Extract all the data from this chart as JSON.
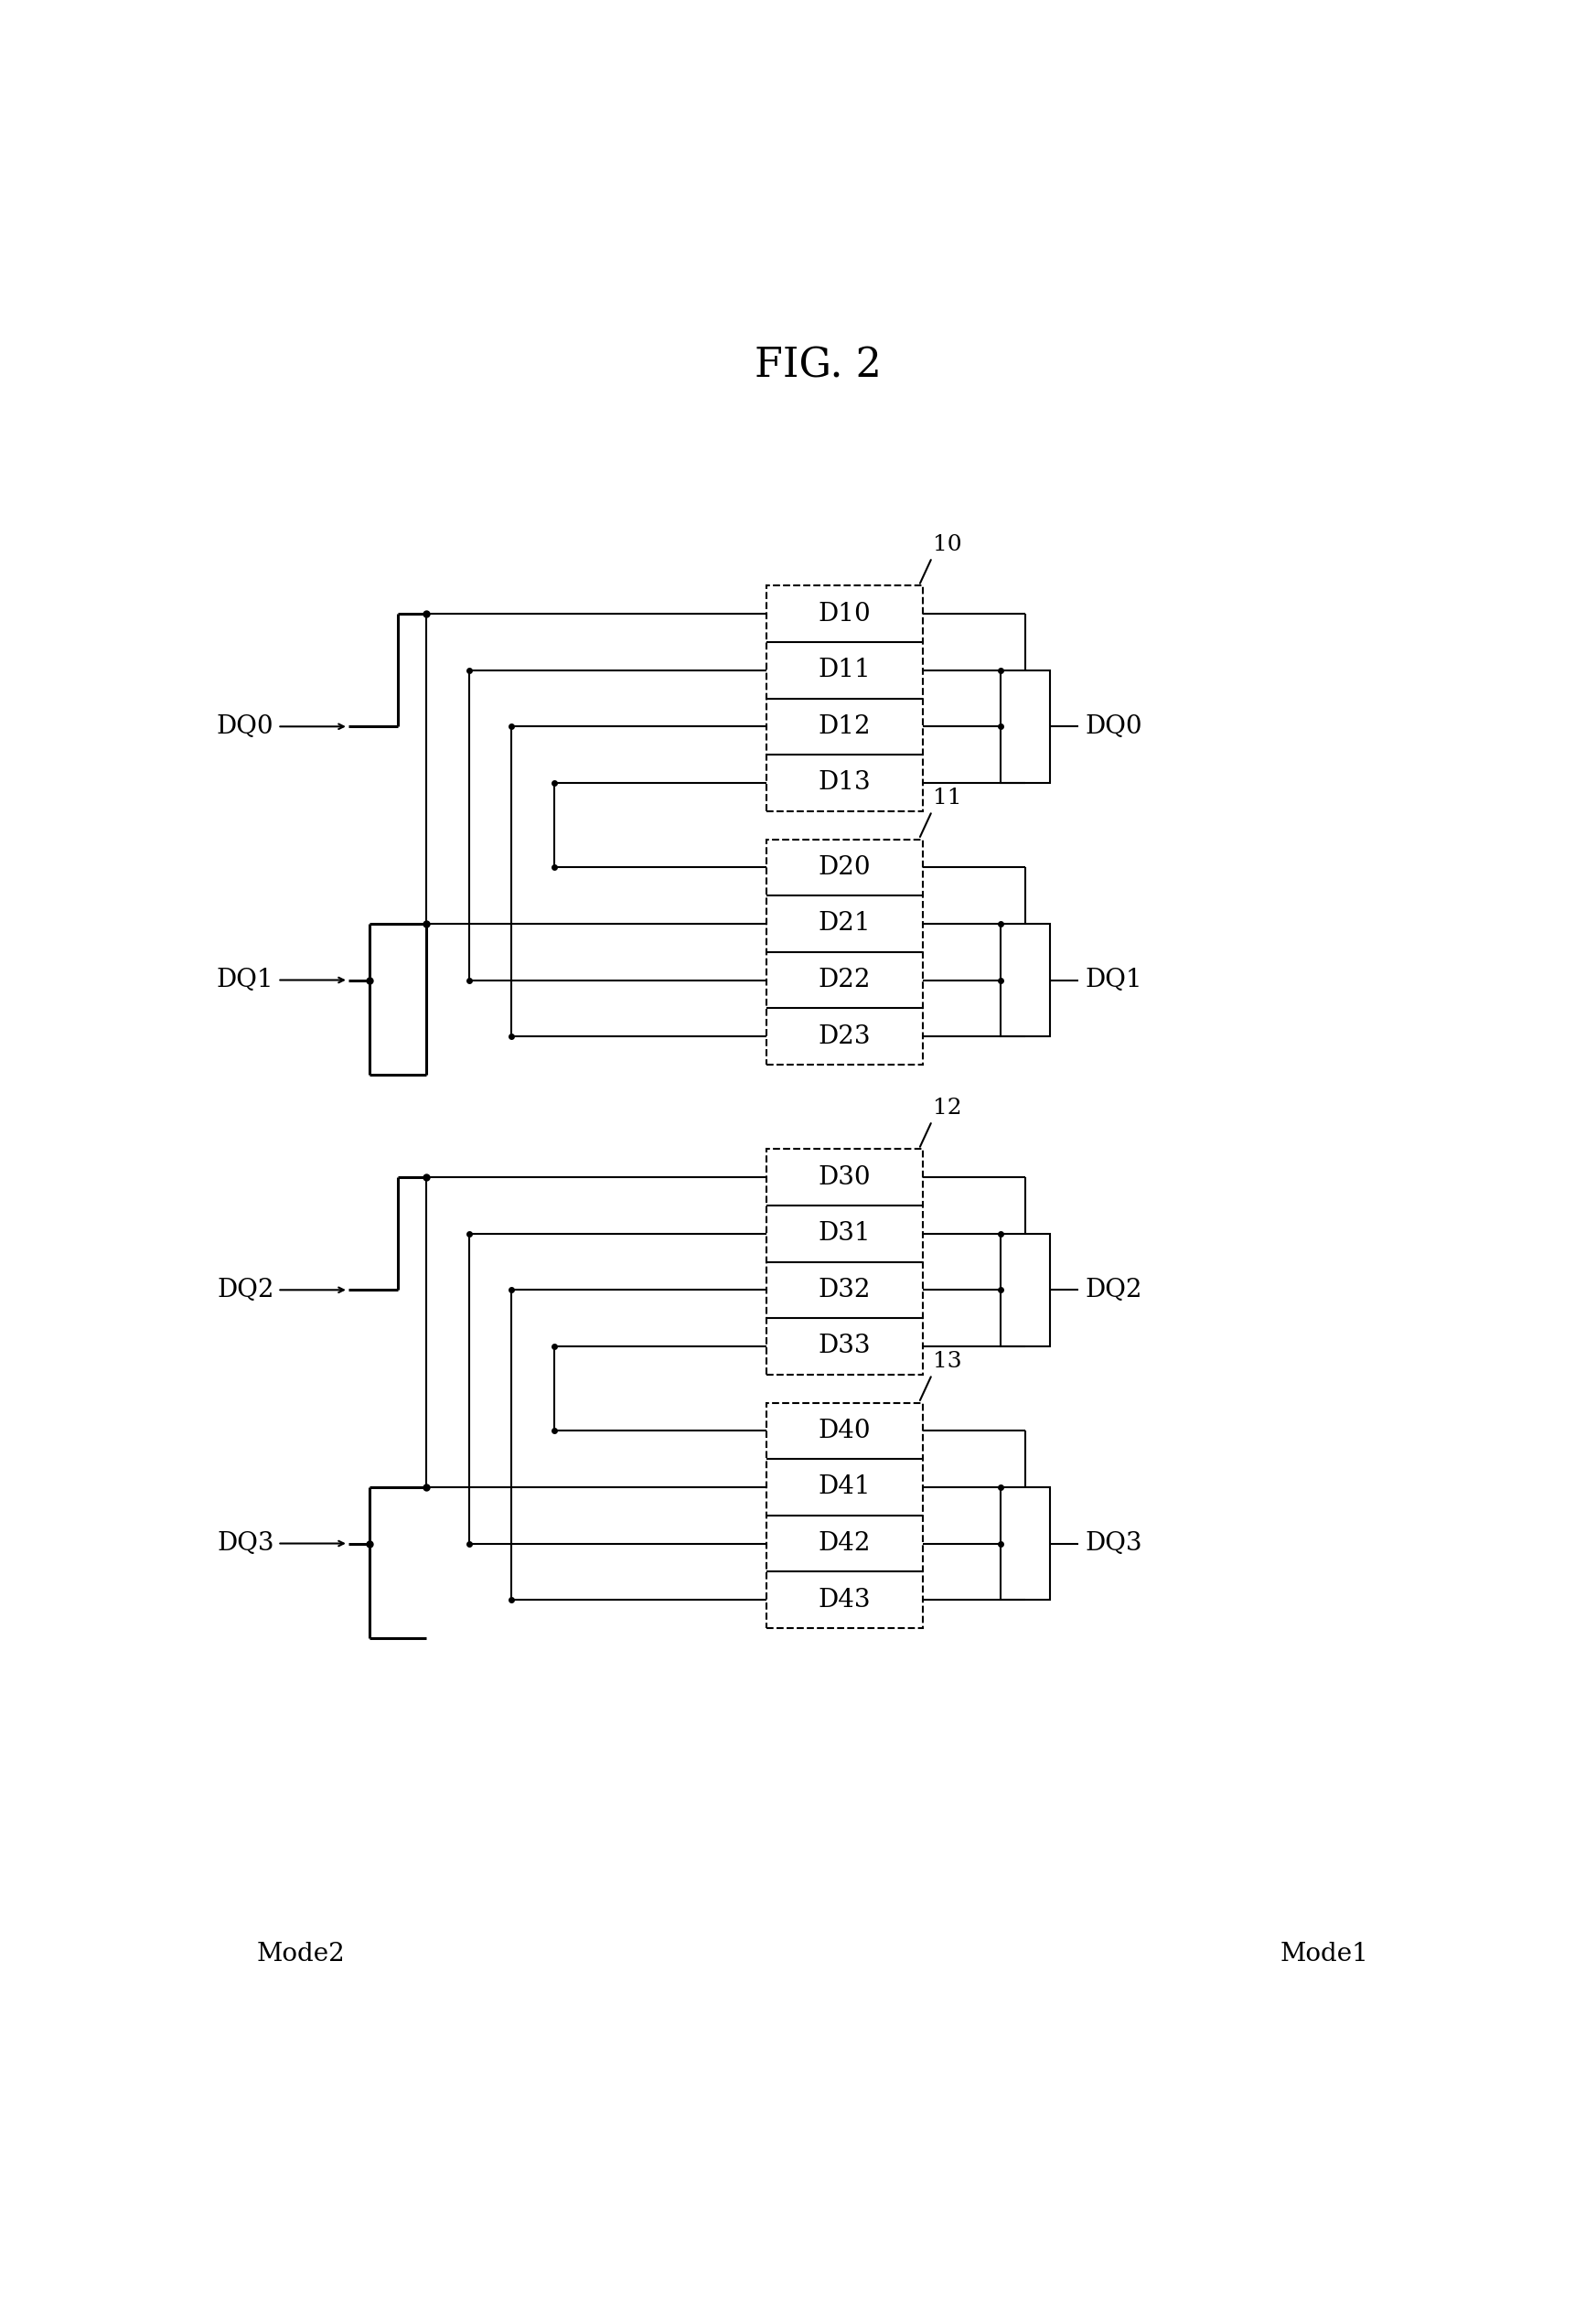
{
  "title": "FIG. 2",
  "title_fontsize": 32,
  "cell_fontsize": 20,
  "label_fontsize": 20,
  "annot_fontsize": 18,
  "mode_fontsize": 20,
  "bg_color": "#ffffff",
  "mode1_label": "Mode1",
  "mode2_label": "Mode2",
  "groups": [
    {
      "id": "10",
      "cells": [
        "D10",
        "D11",
        "D12",
        "D13"
      ]
    },
    {
      "id": "11",
      "cells": [
        "D20",
        "D21",
        "D22",
        "D23"
      ]
    },
    {
      "id": "12",
      "cells": [
        "D30",
        "D31",
        "D32",
        "D33"
      ]
    },
    {
      "id": "13",
      "cells": [
        "D40",
        "D41",
        "D42",
        "D43"
      ]
    }
  ],
  "dq_out": [
    "DQ0",
    "DQ1",
    "DQ2",
    "DQ3"
  ],
  "dq_in": [
    "DQ0",
    "DQ1",
    "DQ2",
    "DQ3"
  ]
}
